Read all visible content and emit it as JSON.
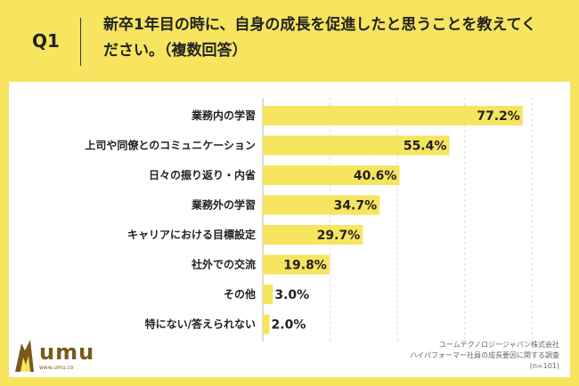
{
  "header": {
    "q_label": "Q1",
    "question": "新卒1年目の時に、自身の成長を促進したと思うことを教えてください。（複数回答）"
  },
  "chart_data": {
    "type": "bar",
    "orientation": "horizontal",
    "categories": [
      "業務内の学習",
      "上司や同僚とのコミュニケーション",
      "日々の振り返り・内省",
      "業務外の学習",
      "キャリアにおける目標設定",
      "社外での交流",
      "その他",
      "特にない/答えられない"
    ],
    "values": [
      77.2,
      55.4,
      40.6,
      34.7,
      29.7,
      19.8,
      3.0,
      2.0
    ],
    "value_labels": [
      "77.2%",
      "55.4%",
      "40.6%",
      "34.7%",
      "29.7%",
      "19.8%",
      "3.0%",
      "2.0%"
    ],
    "unit": "%",
    "xlim": [
      0,
      100
    ],
    "grid": true,
    "bar_color": "#f7e45f"
  },
  "source": {
    "line1": "ユームテクノロジージャパン株式会社",
    "line2": "ハイパフォーマー社員の成長要因に関する調査",
    "line3": "(n=101)"
  },
  "logo": {
    "text": "umu",
    "url": "www.umu.co"
  },
  "colors": {
    "background": "#f7e45f",
    "panel": "#ffffff",
    "bar": "#f7e45f",
    "logo": "#7a5a1a"
  }
}
